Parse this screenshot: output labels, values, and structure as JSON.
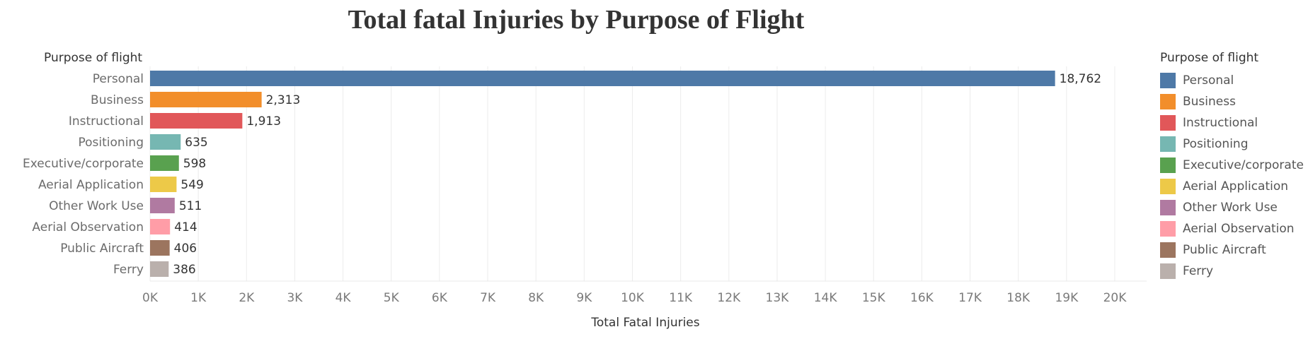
{
  "chart_data": {
    "type": "bar",
    "orientation": "horizontal",
    "title": "Total fatal Injuries by Purpose of Flight",
    "row_header": "Purpose of flight",
    "xlabel": "Total Fatal Injuries",
    "categories": [
      "Personal",
      "Business",
      "Instructional",
      "Positioning",
      "Executive/corporate",
      "Aerial Application",
      "Other Work Use",
      "Aerial Observation",
      "Public Aircraft",
      "Ferry"
    ],
    "values": [
      18762,
      2313,
      1913,
      635,
      598,
      549,
      511,
      414,
      406,
      386
    ],
    "value_labels": [
      "18,762",
      "2,313",
      "1,913",
      "635",
      "598",
      "549",
      "511",
      "414",
      "406",
      "386"
    ],
    "colors": [
      "#4e79a7",
      "#f28e2b",
      "#e15759",
      "#76b7b2",
      "#59a14f",
      "#edc948",
      "#b07aa1",
      "#ff9da7",
      "#9c755f",
      "#bab0ac"
    ],
    "xlim": [
      0,
      20000
    ],
    "xticks": [
      0,
      1000,
      2000,
      3000,
      4000,
      5000,
      6000,
      7000,
      8000,
      9000,
      10000,
      11000,
      12000,
      13000,
      14000,
      15000,
      16000,
      17000,
      18000,
      19000,
      20000
    ],
    "xtick_labels": [
      "0K",
      "1K",
      "2K",
      "3K",
      "4K",
      "5K",
      "6K",
      "7K",
      "8K",
      "9K",
      "10K",
      "11K",
      "12K",
      "13K",
      "14K",
      "15K",
      "16K",
      "17K",
      "18K",
      "19K",
      "20K"
    ],
    "grid": "vertical",
    "legend": {
      "title": "Purpose of flight",
      "placement": "right"
    }
  }
}
